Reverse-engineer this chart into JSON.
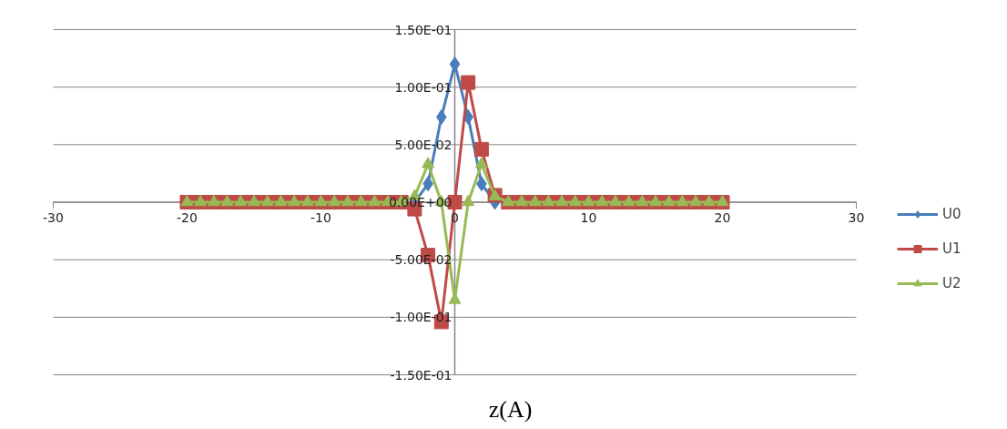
{
  "chart_data": {
    "type": "line",
    "xlabel": "z(A)",
    "x": [
      -20,
      -19,
      -18,
      -17,
      -16,
      -15,
      -14,
      -13,
      -12,
      -11,
      -10,
      -9,
      -8,
      -7,
      -6,
      -5,
      -4,
      -3,
      -2,
      -1,
      0,
      1,
      2,
      3,
      4,
      5,
      6,
      7,
      8,
      9,
      10,
      11,
      12,
      13,
      14,
      15,
      16,
      17,
      18,
      19,
      20
    ],
    "series": [
      {
        "name": "U0",
        "color": "#4a7ebb",
        "marker": "diamond",
        "values": [
          null,
          null,
          null,
          null,
          null,
          null,
          null,
          null,
          null,
          null,
          null,
          null,
          null,
          null,
          null,
          null,
          null,
          0,
          0.016,
          0.074,
          0.12,
          0.074,
          0.016,
          0,
          null,
          null,
          null,
          null,
          null,
          null,
          null,
          null,
          null,
          null,
          null,
          null,
          null,
          null,
          null,
          null,
          null
        ]
      },
      {
        "name": "U1",
        "color": "#be4b48",
        "marker": "square",
        "values": [
          0,
          0,
          0,
          0,
          0,
          0,
          0,
          0,
          0,
          0,
          0,
          0,
          0,
          0,
          0,
          0,
          0,
          -0.006,
          -0.046,
          -0.104,
          0,
          0.104,
          0.046,
          0.006,
          0,
          0,
          0,
          0,
          0,
          0,
          0,
          0,
          0,
          0,
          0,
          0,
          0,
          0,
          0,
          0,
          0
        ]
      },
      {
        "name": "U2",
        "color": "#98b954",
        "marker": "triangle",
        "values": [
          0,
          0,
          0,
          0,
          0,
          0,
          0,
          0,
          0,
          0,
          0,
          0,
          0,
          0,
          0,
          0,
          0,
          0.005,
          0.033,
          0,
          -0.085,
          0,
          0.033,
          0.005,
          0,
          0,
          0,
          0,
          0,
          0,
          0,
          0,
          0,
          0,
          0,
          0,
          0,
          0,
          0,
          0,
          0
        ]
      }
    ],
    "xlim": [
      -30,
      30
    ],
    "xticks": [
      -30,
      -20,
      -10,
      0,
      10,
      20,
      30
    ],
    "ylim": [
      -0.15,
      0.15
    ],
    "yticks": [
      {
        "value": -0.15,
        "label": "-1.50E-01"
      },
      {
        "value": -0.1,
        "label": "-1.00E-01"
      },
      {
        "value": -0.05,
        "label": "-5.00E-02"
      },
      {
        "value": 0,
        "label": "0.00E+00"
      },
      {
        "value": 0.05,
        "label": "5.00E-02"
      },
      {
        "value": 0.1,
        "label": "1.00E-01"
      },
      {
        "value": 0.15,
        "label": "1.50E-01"
      }
    ],
    "grid": "y",
    "legend": "right"
  }
}
